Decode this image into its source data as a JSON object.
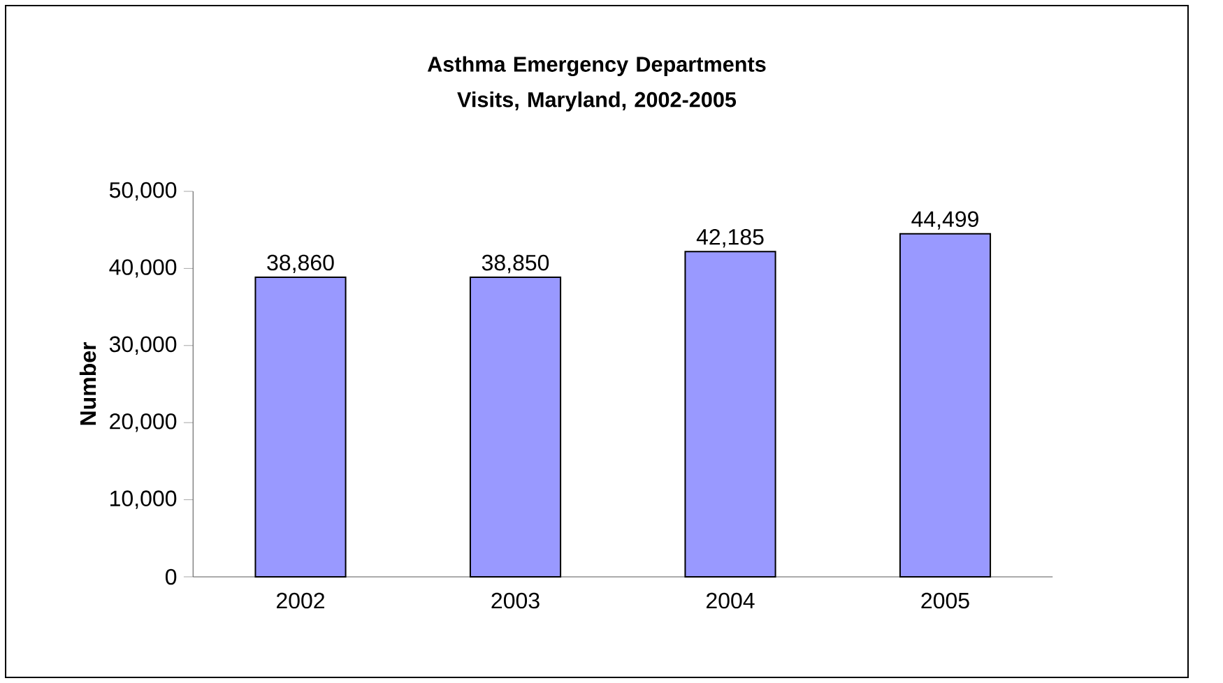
{
  "chart_data": {
    "type": "bar",
    "title": "Asthma Emergency Departments Visits, Maryland, 2002-2005",
    "ylabel": "Number",
    "categories": [
      "2002",
      "2003",
      "2004",
      "2005"
    ],
    "values": [
      38860,
      38850,
      42185,
      44499
    ],
    "value_labels": [
      "38,860",
      "38,850",
      "42,185",
      "44,499"
    ],
    "color": "#9999ff",
    "legend": false,
    "ylim": [
      0,
      50000
    ],
    "yticks": [
      {
        "value": 0,
        "label": "0"
      },
      {
        "value": 10000,
        "label": "10,000"
      },
      {
        "value": 20000,
        "label": "20,000"
      },
      {
        "value": 30000,
        "label": "30,000"
      },
      {
        "value": 40000,
        "label": "40,000"
      },
      {
        "value": 50000,
        "label": "50,000"
      }
    ]
  }
}
